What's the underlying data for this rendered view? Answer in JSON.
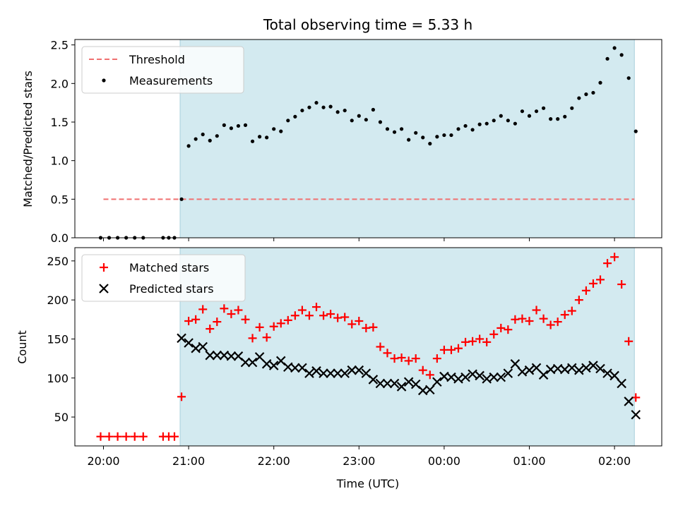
{
  "chart_data": [
    {
      "type": "scatter",
      "title": "Total observing time = 5.33 h",
      "xlabel": "",
      "ylabel": "Matched/Predicted stars",
      "ylim": [
        0,
        2.57
      ],
      "yticks": [
        "0.0",
        "0.5",
        "1.0",
        "1.5",
        "2.0",
        "2.5"
      ],
      "shaded_region": {
        "x_start": "20:54",
        "x_end": "02:14",
        "color": "#d3eaf0"
      },
      "threshold": {
        "name": "Threshold",
        "value": 0.5,
        "x_start": "20:00",
        "x_end": "02:14",
        "color": "#f07070"
      },
      "series": [
        {
          "name": "Measurements",
          "color": "#000000",
          "points": [
            [
              "19:58",
              0.0
            ],
            [
              "20:04",
              0.0
            ],
            [
              "20:10",
              0.0
            ],
            [
              "20:16",
              0.0
            ],
            [
              "20:22",
              0.0
            ],
            [
              "20:28",
              0.0
            ],
            [
              "20:42",
              0.0
            ],
            [
              "20:46",
              0.0
            ],
            [
              "20:50",
              0.0
            ],
            [
              "20:55",
              0.5
            ],
            [
              "21:00",
              1.19
            ],
            [
              "21:05",
              1.28
            ],
            [
              "21:10",
              1.34
            ],
            [
              "21:15",
              1.26
            ],
            [
              "21:20",
              1.32
            ],
            [
              "21:25",
              1.46
            ],
            [
              "21:30",
              1.42
            ],
            [
              "21:35",
              1.45
            ],
            [
              "21:40",
              1.46
            ],
            [
              "21:45",
              1.25
            ],
            [
              "21:50",
              1.31
            ],
            [
              "21:55",
              1.3
            ],
            [
              "22:00",
              1.41
            ],
            [
              "22:05",
              1.38
            ],
            [
              "22:10",
              1.52
            ],
            [
              "22:15",
              1.57
            ],
            [
              "22:20",
              1.65
            ],
            [
              "22:25",
              1.69
            ],
            [
              "22:30",
              1.75
            ],
            [
              "22:35",
              1.69
            ],
            [
              "22:40",
              1.7
            ],
            [
              "22:45",
              1.63
            ],
            [
              "22:50",
              1.65
            ],
            [
              "22:55",
              1.52
            ],
            [
              "23:00",
              1.58
            ],
            [
              "23:05",
              1.53
            ],
            [
              "23:10",
              1.66
            ],
            [
              "23:15",
              1.5
            ],
            [
              "23:20",
              1.41
            ],
            [
              "23:25",
              1.37
            ],
            [
              "23:30",
              1.41
            ],
            [
              "23:35",
              1.27
            ],
            [
              "23:40",
              1.36
            ],
            [
              "23:45",
              1.3
            ],
            [
              "23:50",
              1.22
            ],
            [
              "23:55",
              1.31
            ],
            [
              "00:00",
              1.33
            ],
            [
              "00:05",
              1.33
            ],
            [
              "00:10",
              1.41
            ],
            [
              "00:15",
              1.45
            ],
            [
              "00:20",
              1.4
            ],
            [
              "00:25",
              1.47
            ],
            [
              "00:30",
              1.48
            ],
            [
              "00:35",
              1.52
            ],
            [
              "00:40",
              1.58
            ],
            [
              "00:45",
              1.52
            ],
            [
              "00:50",
              1.48
            ],
            [
              "00:55",
              1.64
            ],
            [
              "01:00",
              1.58
            ],
            [
              "01:05",
              1.64
            ],
            [
              "01:10",
              1.68
            ],
            [
              "01:15",
              1.54
            ],
            [
              "01:20",
              1.54
            ],
            [
              "01:25",
              1.57
            ],
            [
              "01:30",
              1.68
            ],
            [
              "01:35",
              1.81
            ],
            [
              "01:40",
              1.86
            ],
            [
              "01:45",
              1.88
            ],
            [
              "01:50",
              2.01
            ],
            [
              "01:55",
              2.32
            ],
            [
              "02:00",
              2.46
            ],
            [
              "02:05",
              2.37
            ],
            [
              "02:10",
              2.07
            ],
            [
              "02:15",
              1.38
            ]
          ]
        }
      ],
      "legend": {
        "position": "upper left",
        "entries": [
          "Threshold",
          "Measurements"
        ]
      }
    },
    {
      "type": "scatter",
      "xlabel": "Time (UTC)",
      "ylabel": "Count",
      "ylim": [
        13,
        267
      ],
      "yticks": [
        "50",
        "100",
        "150",
        "200",
        "250"
      ],
      "xticks": [
        "20:00",
        "21:00",
        "22:00",
        "23:00",
        "00:00",
        "01:00",
        "02:00"
      ],
      "shaded_region": {
        "x_start": "20:54",
        "x_end": "02:14",
        "color": "#d3eaf0"
      },
      "series": [
        {
          "name": "Matched stars",
          "marker": "plus",
          "color": "#ff0000",
          "points": [
            [
              "19:58",
              25
            ],
            [
              "20:04",
              25
            ],
            [
              "20:10",
              25
            ],
            [
              "20:16",
              25
            ],
            [
              "20:22",
              25
            ],
            [
              "20:28",
              25
            ],
            [
              "20:42",
              25
            ],
            [
              "20:46",
              25
            ],
            [
              "20:50",
              25
            ],
            [
              "20:55",
              76
            ],
            [
              "21:00",
              173
            ],
            [
              "21:05",
              175
            ],
            [
              "21:10",
              188
            ],
            [
              "21:15",
              163
            ],
            [
              "21:20",
              172
            ],
            [
              "21:25",
              189
            ],
            [
              "21:30",
              182
            ],
            [
              "21:35",
              187
            ],
            [
              "21:40",
              175
            ],
            [
              "21:45",
              151
            ],
            [
              "21:50",
              165
            ],
            [
              "21:55",
              152
            ],
            [
              "22:00",
              166
            ],
            [
              "22:05",
              170
            ],
            [
              "22:10",
              174
            ],
            [
              "22:15",
              180
            ],
            [
              "22:20",
              187
            ],
            [
              "22:25",
              180
            ],
            [
              "22:30",
              191
            ],
            [
              "22:35",
              180
            ],
            [
              "22:40",
              182
            ],
            [
              "22:45",
              177
            ],
            [
              "22:50",
              178
            ],
            [
              "22:55",
              169
            ],
            [
              "23:00",
              173
            ],
            [
              "23:05",
              164
            ],
            [
              "23:10",
              165
            ],
            [
              "23:15",
              140
            ],
            [
              "23:20",
              132
            ],
            [
              "23:25",
              125
            ],
            [
              "23:30",
              126
            ],
            [
              "23:35",
              122
            ],
            [
              "23:40",
              125
            ],
            [
              "23:45",
              110
            ],
            [
              "23:50",
              104
            ],
            [
              "23:55",
              125
            ],
            [
              "00:00",
              136
            ],
            [
              "00:05",
              136
            ],
            [
              "00:10",
              138
            ],
            [
              "00:15",
              146
            ],
            [
              "00:20",
              147
            ],
            [
              "00:25",
              150
            ],
            [
              "00:30",
              146
            ],
            [
              "00:35",
              156
            ],
            [
              "00:40",
              164
            ],
            [
              "00:45",
              162
            ],
            [
              "00:50",
              175
            ],
            [
              "00:55",
              176
            ],
            [
              "01:00",
              173
            ],
            [
              "01:05",
              187
            ],
            [
              "01:10",
              176
            ],
            [
              "01:15",
              168
            ],
            [
              "01:20",
              172
            ],
            [
              "01:25",
              181
            ],
            [
              "01:30",
              186
            ],
            [
              "01:35",
              200
            ],
            [
              "01:40",
              212
            ],
            [
              "01:45",
              221
            ],
            [
              "01:50",
              226
            ],
            [
              "01:55",
              247
            ],
            [
              "02:00",
              255
            ],
            [
              "02:05",
              220
            ],
            [
              "02:10",
              147
            ],
            [
              "02:15",
              75
            ]
          ]
        },
        {
          "name": "Predicted stars",
          "marker": "x",
          "color": "#000000",
          "points": [
            [
              "20:55",
              151
            ],
            [
              "21:00",
              145
            ],
            [
              "21:05",
              138
            ],
            [
              "21:10",
              140
            ],
            [
              "21:15",
              129
            ],
            [
              "21:20",
              129
            ],
            [
              "21:25",
              129
            ],
            [
              "21:30",
              128
            ],
            [
              "21:35",
              128
            ],
            [
              "21:40",
              120
            ],
            [
              "21:45",
              120
            ],
            [
              "21:50",
              127
            ],
            [
              "21:55",
              118
            ],
            [
              "22:00",
              116
            ],
            [
              "22:05",
              122
            ],
            [
              "22:10",
              114
            ],
            [
              "22:15",
              113
            ],
            [
              "22:20",
              113
            ],
            [
              "22:25",
              106
            ],
            [
              "22:30",
              109
            ],
            [
              "22:35",
              106
            ],
            [
              "22:40",
              106
            ],
            [
              "22:45",
              106
            ],
            [
              "22:50",
              106
            ],
            [
              "22:55",
              110
            ],
            [
              "23:00",
              110
            ],
            [
              "23:05",
              106
            ],
            [
              "23:10",
              98
            ],
            [
              "23:15",
              93
            ],
            [
              "23:20",
              93
            ],
            [
              "23:25",
              93
            ],
            [
              "23:30",
              89
            ],
            [
              "23:35",
              95
            ],
            [
              "23:40",
              92
            ],
            [
              "23:45",
              84
            ],
            [
              "23:50",
              85
            ],
            [
              "23:55",
              95
            ],
            [
              "00:00",
              102
            ],
            [
              "00:05",
              101
            ],
            [
              "00:10",
              99
            ],
            [
              "00:15",
              101
            ],
            [
              "00:20",
              105
            ],
            [
              "00:25",
              103
            ],
            [
              "00:30",
              99
            ],
            [
              "00:35",
              101
            ],
            [
              "00:40",
              101
            ],
            [
              "00:45",
              106
            ],
            [
              "00:50",
              118
            ],
            [
              "00:55",
              108
            ],
            [
              "01:00",
              110
            ],
            [
              "01:05",
              113
            ],
            [
              "01:10",
              104
            ],
            [
              "01:15",
              111
            ],
            [
              "01:20",
              112
            ],
            [
              "01:25",
              111
            ],
            [
              "01:30",
              113
            ],
            [
              "01:35",
              110
            ],
            [
              "01:40",
              113
            ],
            [
              "01:45",
              116
            ],
            [
              "01:50",
              112
            ],
            [
              "01:55",
              106
            ],
            [
              "02:00",
              103
            ],
            [
              "02:05",
              93
            ],
            [
              "02:10",
              70
            ],
            [
              "02:15",
              53
            ]
          ]
        }
      ],
      "legend": {
        "position": "upper left",
        "entries": [
          "Matched stars",
          "Predicted stars"
        ]
      }
    }
  ]
}
